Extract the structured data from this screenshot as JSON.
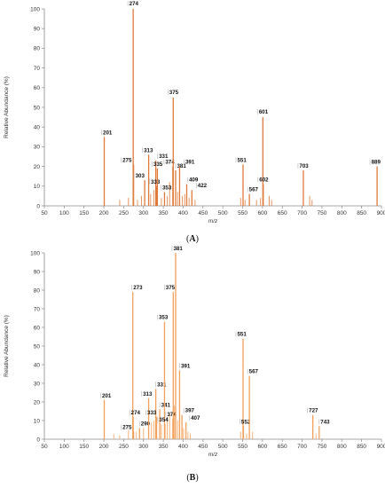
{
  "chart_data": [
    {
      "id": "A",
      "type": "bar",
      "panel_label": "A",
      "color": "#e07a3a",
      "xlabel": "m/z",
      "ylabel": "Relative Abundance (%)",
      "xlim": [
        50,
        900
      ],
      "ylim": [
        0,
        100
      ],
      "xticks": [
        50,
        100,
        150,
        200,
        250,
        300,
        350,
        400,
        450,
        500,
        550,
        600,
        650,
        700,
        750,
        800,
        850,
        900
      ],
      "yticks": [
        0,
        10,
        20,
        30,
        40,
        50,
        60,
        70,
        80,
        90,
        100
      ],
      "peaks": [
        {
          "mz": 201,
          "intensity": 35,
          "label": "201"
        },
        {
          "mz": 274,
          "intensity": 100,
          "label": "274"
        },
        {
          "mz": 275,
          "intensity": 21,
          "label": "275"
        },
        {
          "mz": 303,
          "intensity": 13,
          "label": "303"
        },
        {
          "mz": 313,
          "intensity": 26,
          "label": "313"
        },
        {
          "mz": 331,
          "intensity": 23,
          "label": "331"
        },
        {
          "mz": 333,
          "intensity": 10,
          "label": "333"
        },
        {
          "mz": 335,
          "intensity": 19,
          "label": "335"
        },
        {
          "mz": 353,
          "intensity": 7,
          "label": "353"
        },
        {
          "mz": 374,
          "intensity": 20,
          "label": "374"
        },
        {
          "mz": 375,
          "intensity": 55,
          "label": "375"
        },
        {
          "mz": 381,
          "intensity": 18,
          "label": "381"
        },
        {
          "mz": 391,
          "intensity": 20,
          "label": "391"
        },
        {
          "mz": 409,
          "intensity": 11,
          "label": "409"
        },
        {
          "mz": 422,
          "intensity": 8,
          "label": "422"
        },
        {
          "mz": 551,
          "intensity": 21,
          "label": "551"
        },
        {
          "mz": 567,
          "intensity": 6,
          "label": "567"
        },
        {
          "mz": 601,
          "intensity": 45,
          "label": "601"
        },
        {
          "mz": 602,
          "intensity": 11,
          "label": "602"
        },
        {
          "mz": 703,
          "intensity": 18,
          "label": "703"
        },
        {
          "mz": 889,
          "intensity": 20,
          "label": "889"
        }
      ],
      "minor_peaks": [
        {
          "mz": 240,
          "intensity": 3
        },
        {
          "mz": 262,
          "intensity": 4
        },
        {
          "mz": 285,
          "intensity": 3
        },
        {
          "mz": 295,
          "intensity": 5
        },
        {
          "mz": 318,
          "intensity": 6
        },
        {
          "mz": 326,
          "intensity": 8
        },
        {
          "mz": 345,
          "intensity": 4
        },
        {
          "mz": 360,
          "intensity": 5
        },
        {
          "mz": 366,
          "intensity": 12
        },
        {
          "mz": 386,
          "intensity": 7
        },
        {
          "mz": 398,
          "intensity": 5
        },
        {
          "mz": 404,
          "intensity": 6
        },
        {
          "mz": 415,
          "intensity": 4
        },
        {
          "mz": 430,
          "intensity": 3
        },
        {
          "mz": 545,
          "intensity": 4
        },
        {
          "mz": 556,
          "intensity": 3
        },
        {
          "mz": 585,
          "intensity": 3
        },
        {
          "mz": 595,
          "intensity": 4
        },
        {
          "mz": 617,
          "intensity": 5
        },
        {
          "mz": 623,
          "intensity": 3
        },
        {
          "mz": 719,
          "intensity": 5
        },
        {
          "mz": 725,
          "intensity": 3
        }
      ]
    },
    {
      "id": "B",
      "type": "bar",
      "panel_label": "B",
      "color": "#f2a05a",
      "xlabel": "m/z",
      "ylabel": "Relative Abundance (%)",
      "xlim": [
        50,
        900
      ],
      "ylim": [
        0,
        100
      ],
      "xticks": [
        50,
        100,
        150,
        200,
        250,
        300,
        350,
        400,
        450,
        500,
        550,
        600,
        650,
        700,
        750,
        800,
        850,
        900
      ],
      "yticks": [
        0,
        10,
        20,
        30,
        40,
        50,
        60,
        70,
        80,
        90,
        100
      ],
      "peaks": [
        {
          "mz": 201,
          "intensity": 21,
          "label": "201"
        },
        {
          "mz": 273,
          "intensity": 79,
          "label": "273"
        },
        {
          "mz": 274,
          "intensity": 12,
          "label": "274"
        },
        {
          "mz": 275,
          "intensity": 4,
          "label": "275"
        },
        {
          "mz": 290,
          "intensity": 6,
          "label": "290"
        },
        {
          "mz": 313,
          "intensity": 22,
          "label": "313"
        },
        {
          "mz": 331,
          "intensity": 27,
          "label": "331"
        },
        {
          "mz": 333,
          "intensity": 12,
          "label": "333"
        },
        {
          "mz": 341,
          "intensity": 16,
          "label": "341"
        },
        {
          "mz": 353,
          "intensity": 63,
          "label": "353"
        },
        {
          "mz": 354,
          "intensity": 8,
          "label": "354"
        },
        {
          "mz": 374,
          "intensity": 11,
          "label": "374"
        },
        {
          "mz": 375,
          "intensity": 79,
          "label": "375"
        },
        {
          "mz": 381,
          "intensity": 100,
          "label": "381"
        },
        {
          "mz": 391,
          "intensity": 37,
          "label": "391"
        },
        {
          "mz": 397,
          "intensity": 13,
          "label": "397"
        },
        {
          "mz": 407,
          "intensity": 9,
          "label": "407"
        },
        {
          "mz": 551,
          "intensity": 54,
          "label": "551"
        },
        {
          "mz": 552,
          "intensity": 7,
          "label": "552"
        },
        {
          "mz": 567,
          "intensity": 34,
          "label": "567"
        },
        {
          "mz": 727,
          "intensity": 13,
          "label": "727"
        },
        {
          "mz": 743,
          "intensity": 7,
          "label": "743"
        }
      ],
      "minor_peaks": [
        {
          "mz": 225,
          "intensity": 3
        },
        {
          "mz": 240,
          "intensity": 2
        },
        {
          "mz": 262,
          "intensity": 5
        },
        {
          "mz": 282,
          "intensity": 4
        },
        {
          "mz": 300,
          "intensity": 6
        },
        {
          "mz": 320,
          "intensity": 9
        },
        {
          "mz": 326,
          "intensity": 10
        },
        {
          "mz": 345,
          "intensity": 8
        },
        {
          "mz": 360,
          "intensity": 12
        },
        {
          "mz": 366,
          "intensity": 14
        },
        {
          "mz": 378,
          "intensity": 18
        },
        {
          "mz": 386,
          "intensity": 10
        },
        {
          "mz": 401,
          "intensity": 6
        },
        {
          "mz": 412,
          "intensity": 4
        },
        {
          "mz": 418,
          "intensity": 3
        },
        {
          "mz": 545,
          "intensity": 4
        },
        {
          "mz": 560,
          "intensity": 3
        },
        {
          "mz": 575,
          "intensity": 4
        },
        {
          "mz": 735,
          "intensity": 3
        }
      ]
    }
  ]
}
